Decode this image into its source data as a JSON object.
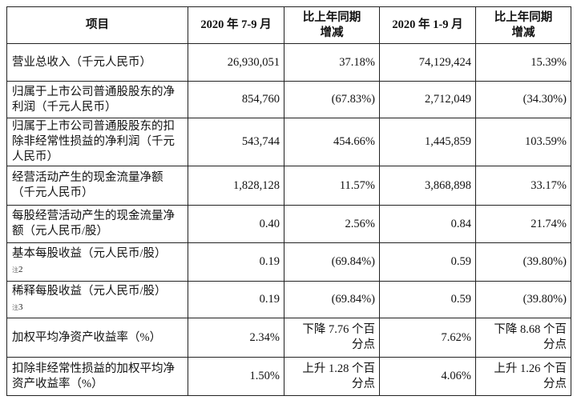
{
  "header": [
    "项目",
    "2020 年 7-9 月",
    "比上年同期增减",
    "2020 年 1-9 月",
    "比上年同期增减"
  ],
  "rows": [
    {
      "label": "营业总收入（千元人民币）",
      "q3": "26,930,051",
      "q3_change": "37.18%",
      "ytd": "74,129,424",
      "ytd_change": "15.39%"
    },
    {
      "label": "归属于上市公司普通股股东的净利润（千元人民币）",
      "q3": "854,760",
      "q3_change": "(67.83%)",
      "ytd": "2,712,049",
      "ytd_change": "(34.30%)"
    },
    {
      "label": "归属于上市公司普通股股东的扣除非经常性损益的净利润（千元人民币）",
      "q3": "543,744",
      "q3_change": "454.66%",
      "ytd": "1,445,859",
      "ytd_change": "103.59%"
    },
    {
      "label": "经营活动产生的现金流量净额（千元人民币）",
      "q3": "1,828,128",
      "q3_change": "11.57%",
      "ytd": "3,868,898",
      "ytd_change": "33.17%"
    },
    {
      "label": "每股经营活动产生的现金流量净额（元人民币/股）",
      "q3": "0.40",
      "q3_change": "2.56%",
      "ytd": "0.84",
      "ytd_change": "21.74%"
    },
    {
      "label": "基本每股收益（元人民币/股）",
      "note_mark": "注",
      "note_num": "2",
      "q3": "0.19",
      "q3_change": "(69.84%)",
      "ytd": "0.59",
      "ytd_change": "(39.80%)"
    },
    {
      "label": "稀释每股收益（元人民币/股）",
      "note_mark": "注",
      "note_num": "3",
      "q3": "0.19",
      "q3_change": "(69.84%)",
      "ytd": "0.59",
      "ytd_change": "(39.80%)"
    },
    {
      "label": "加权平均净资产收益率（%）",
      "q3": "2.34%",
      "q3_change": "下降 7.76 个百分点",
      "ytd": "7.62%",
      "ytd_change": "下降 8.68 个百分点"
    },
    {
      "label": "扣除非经常性损益的加权平均净资产收益率（%）",
      "q3": "1.50%",
      "q3_change": "上升 1.28 个百分点",
      "ytd": "4.06%",
      "ytd_change": "上升 1.26 个百分点"
    }
  ]
}
